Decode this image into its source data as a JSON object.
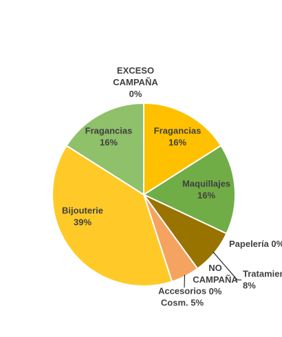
{
  "chart_data": {
    "type": "pie",
    "title": "",
    "slices": [
      {
        "label_lines": [
          "Fragancias",
          "16%"
        ],
        "value": 16,
        "color": "#FFC000"
      },
      {
        "label_lines": [
          "Maquillajes",
          "16%"
        ],
        "value": 16,
        "color": "#70AD47"
      },
      {
        "label_lines": [
          "Papelería 0%"
        ],
        "value": 0,
        "color": "#A5A5A5"
      },
      {
        "label_lines": [
          "Tratamientos",
          "8%"
        ],
        "value": 8,
        "color": "#997300"
      },
      {
        "label_lines": [
          "NO",
          "CAMPAÑA",
          "0%"
        ],
        "value": 0,
        "color": "#C00000"
      },
      {
        "label_lines": [
          "Accesorios",
          "Cosm. 5%"
        ],
        "value": 5,
        "color": "#F4A460"
      },
      {
        "label_lines": [
          "Bijouterie",
          "39%"
        ],
        "value": 39,
        "color": "#FFCA28"
      },
      {
        "label_lines": [
          "Fragancias",
          "16%"
        ],
        "value": 16,
        "color": "#8FC06A"
      },
      {
        "label_lines": [
          "EXCESO",
          "CAMPAÑA",
          "0%"
        ],
        "value": 0,
        "color": "#5B9BD5"
      }
    ]
  }
}
